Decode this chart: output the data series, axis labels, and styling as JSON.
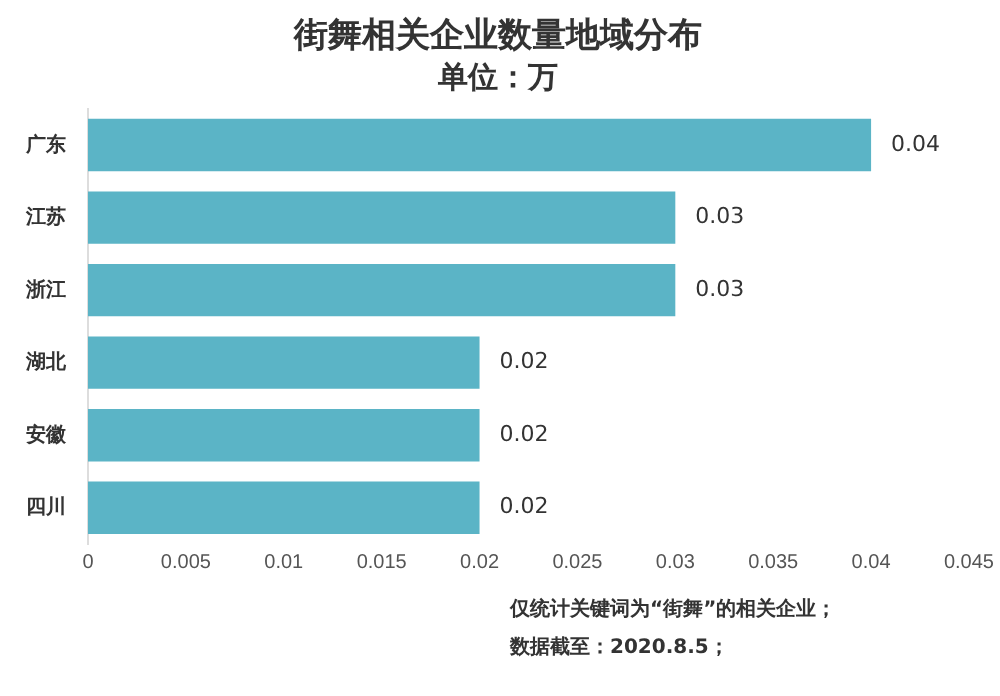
{
  "chart_data": {
    "type": "bar",
    "orientation": "horizontal",
    "title": "街舞相关企业数量地域分布",
    "subtitle": "单位：万",
    "categories": [
      "广东",
      "江苏",
      "浙江",
      "湖北",
      "安徽",
      "四川"
    ],
    "values": [
      0.04,
      0.03,
      0.03,
      0.02,
      0.02,
      0.02
    ],
    "color": "#5bb4c6",
    "xlim": [
      0,
      0.045
    ],
    "xticks": [
      0,
      0.005,
      0.01,
      0.015,
      0.02,
      0.025,
      0.03,
      0.035,
      0.04,
      0.045
    ],
    "grid": false,
    "legend": false,
    "data_labels": true,
    "annotations": [
      "仅统计关键词为“街舞”的相关企业；",
      "数据截至：2020.8.5；"
    ]
  }
}
